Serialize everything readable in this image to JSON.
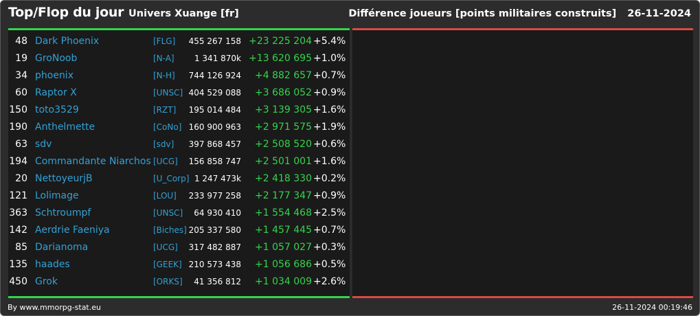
{
  "header": {
    "title": "Top/Flop du jour",
    "universe": "Univers Xuange [fr]",
    "metric": "Différence joueurs [points militaires construits]",
    "date": "26-11-2024"
  },
  "colors": {
    "top_accent": "#35d44c",
    "flop_accent": "#d94b45",
    "link": "#33a1d6"
  },
  "top_rows": [
    {
      "rank": "48",
      "name": "Dark Phoenix",
      "alliance": "[FLG]",
      "points": "455 267 158",
      "diff": "+23 225 204",
      "pct": "+5.4%"
    },
    {
      "rank": "19",
      "name": "GroNoob",
      "alliance": "[N-A]",
      "points": "1 341 870k",
      "diff": "+13 620 695",
      "pct": "+1.0%"
    },
    {
      "rank": "34",
      "name": "phoenix",
      "alliance": "[N-H]",
      "points": "744 126 924",
      "diff": "+4 882 657",
      "pct": "+0.7%"
    },
    {
      "rank": "60",
      "name": "Raptor X",
      "alliance": "[UNSC]",
      "points": "404 529 088",
      "diff": "+3 686 052",
      "pct": "+0.9%"
    },
    {
      "rank": "150",
      "name": "toto3529",
      "alliance": "[RZT]",
      "points": "195 014 484",
      "diff": "+3 139 305",
      "pct": "+1.6%"
    },
    {
      "rank": "190",
      "name": "Anthelmette",
      "alliance": "[CoNo]",
      "points": "160 900 963",
      "diff": "+2 971 575",
      "pct": "+1.9%"
    },
    {
      "rank": "63",
      "name": "sdv",
      "alliance": "[sdv]",
      "points": "397 868 457",
      "diff": "+2 508 520",
      "pct": "+0.6%"
    },
    {
      "rank": "194",
      "name": "Commandante Niarchos",
      "alliance": "[UCG]",
      "points": "156 858 747",
      "diff": "+2 501 001",
      "pct": "+1.6%"
    },
    {
      "rank": "20",
      "name": "NettoyeurjB",
      "alliance": "[U_Corp]",
      "points": "1 247 473k",
      "diff": "+2 418 330",
      "pct": "+0.2%"
    },
    {
      "rank": "121",
      "name": "Lolimage",
      "alliance": "[LOU]",
      "points": "233 977 258",
      "diff": "+2 177 347",
      "pct": "+0.9%"
    },
    {
      "rank": "363",
      "name": "Schtroumpf",
      "alliance": "[UNSC]",
      "points": "64 930 410",
      "diff": "+1 554 468",
      "pct": "+2.5%"
    },
    {
      "rank": "142",
      "name": "Aerdrie Faeniya",
      "alliance": "[Biches]",
      "points": "205 337 580",
      "diff": "+1 457 445",
      "pct": "+0.7%"
    },
    {
      "rank": "85",
      "name": "Darianoma",
      "alliance": "[UCG]",
      "points": "317 482 887",
      "diff": "+1 057 027",
      "pct": "+0.3%"
    },
    {
      "rank": "135",
      "name": "haades",
      "alliance": "[GEEK]",
      "points": "210 573 438",
      "diff": "+1 056 686",
      "pct": "+0.5%"
    },
    {
      "rank": "450",
      "name": "Grok",
      "alliance": "[ORKS]",
      "points": "41 356 812",
      "diff": "+1 034 009",
      "pct": "+2.6%"
    }
  ],
  "footer": {
    "credit": "By www.mmorpg-stat.eu",
    "timestamp": "26-11-2024 00:19:46"
  }
}
